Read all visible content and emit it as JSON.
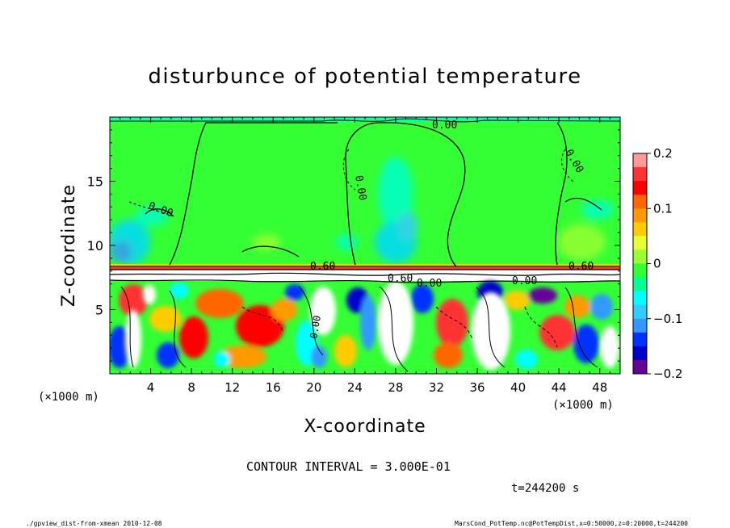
{
  "chart_data": {
    "type": "heatmap",
    "title": "disturbunce of potential temperature",
    "xlabel": "X-coordinate",
    "ylabel": "Z-coordinate",
    "x_unit": "(×1000 m)",
    "y_unit": "(×1000 m)",
    "xlim": [
      0,
      50
    ],
    "ylim": [
      0,
      20
    ],
    "x_ticks": [
      4,
      8,
      12,
      16,
      20,
      24,
      28,
      32,
      36,
      40,
      44,
      48
    ],
    "y_ticks": [
      5,
      10,
      15
    ],
    "colorbar": {
      "range": [
        -0.2,
        0.2
      ],
      "ticks": [
        0.2,
        0.1,
        0,
        -0.1,
        -0.2
      ],
      "tick_labels": [
        "0.2",
        "0.1",
        "0",
        "−0.1",
        "−0.2"
      ],
      "colors": [
        "#ff9999",
        "#ff3333",
        "#ff0000",
        "#ff6600",
        "#ff9900",
        "#ffcc00",
        "#e6ff33",
        "#99ff33",
        "#33ff33",
        "#00ff99",
        "#00ffff",
        "#33ccff",
        "#3399ff",
        "#0033ff",
        "#0000cc",
        "#660099"
      ]
    },
    "contour_interval": "CONTOUR INTERVAL = 3.000E-01",
    "contour_labels": [
      "0.00",
      "0.00",
      "0.00",
      "0.00",
      "0.60",
      "0.60",
      "0.60",
      "0.00",
      "0.00",
      "0.00"
    ],
    "time_label": "t=244200 s",
    "footer_left": "./gpview_dist-from-xmean  2010-12-08",
    "footer_right": "MarsCond_PotTemp.nc@PotTempDist,x=0:50000,z=0:20000,t=244200",
    "grid": false
  }
}
